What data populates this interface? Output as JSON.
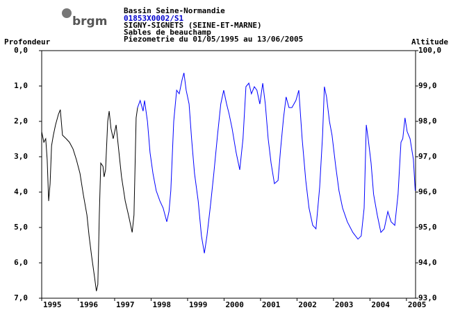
{
  "logo": "brgm",
  "chart_data": {
    "type": "line",
    "title": "Bassin Seine-Normandie",
    "code": "01853X0002/S1",
    "location": "SIGNY-SIGNETS (SEINE-ET-MARNE)",
    "aquifer": "Sables de beauchamp",
    "subtitle": "Piezometrie du 01/05/1995 au 13/06/2005",
    "y_label": "Profondeur",
    "y2_label": "Altitude",
    "xlim": [
      1995,
      2005.25
    ],
    "xticks": [
      1995,
      1996,
      1997,
      1998,
      1999,
      2000,
      2001,
      2002,
      2003,
      2004,
      2005
    ],
    "ylim": [
      7,
      0
    ],
    "yticks": [
      {
        "value": 0,
        "label": "0,0"
      },
      {
        "value": 1,
        "label": "1,0"
      },
      {
        "value": 2,
        "label": "2,0"
      },
      {
        "value": 3,
        "label": "3,0"
      },
      {
        "value": 4,
        "label": "4,0"
      },
      {
        "value": 5,
        "label": "5,0"
      },
      {
        "value": 6,
        "label": "6,0"
      },
      {
        "value": 7,
        "label": "7,0"
      }
    ],
    "y2lim": [
      93,
      100
    ],
    "y2ticks": [
      {
        "value": 100,
        "label": "100,0"
      },
      {
        "value": 99,
        "label": "99,0"
      },
      {
        "value": 98,
        "label": "98,0"
      },
      {
        "value": 97,
        "label": "97,0"
      },
      {
        "value": 96,
        "label": "96,0"
      },
      {
        "value": 95,
        "label": "95,0"
      },
      {
        "value": 94,
        "label": "94,0"
      },
      {
        "value": 93,
        "label": "93,0"
      }
    ],
    "series": [
      {
        "color": "#000000",
        "x": [
          1995.0,
          1995.06,
          1995.11,
          1995.15,
          1995.19,
          1995.23,
          1995.27,
          1995.32,
          1995.38,
          1995.46,
          1995.51,
          1995.57,
          1995.67,
          1995.76,
          1995.86,
          1995.95,
          1996.05,
          1996.14,
          1996.24,
          1996.3,
          1996.37,
          1996.45,
          1996.5,
          1996.54,
          1996.58,
          1996.62,
          1996.68,
          1996.71,
          1996.75,
          1996.81,
          1996.85,
          1996.9,
          1996.96,
          1997.04,
          1997.1,
          1997.19,
          1997.29,
          1997.38,
          1997.48,
          1997.53,
          1997.59,
          1997.63
        ],
        "values": [
          2.29,
          2.59,
          2.49,
          3.08,
          4.25,
          3.76,
          2.69,
          2.39,
          2.1,
          1.8,
          1.67,
          2.39,
          2.49,
          2.59,
          2.78,
          3.08,
          3.47,
          4.06,
          4.65,
          5.24,
          5.82,
          6.41,
          6.8,
          6.61,
          4.65,
          3.18,
          3.27,
          3.57,
          3.37,
          2.0,
          1.71,
          2.2,
          2.49,
          2.1,
          2.69,
          3.57,
          4.25,
          4.65,
          5.14,
          4.65,
          1.9,
          1.61
        ]
      },
      {
        "color": "#0000ff",
        "x": [
          1997.63,
          1997.7,
          1997.78,
          1997.82,
          1997.9,
          1997.97,
          1998.05,
          1998.14,
          1998.24,
          1998.33,
          1998.43,
          1998.49,
          1998.54,
          1998.62,
          1998.7,
          1998.77,
          1998.85,
          1998.9,
          1998.96,
          1999.04,
          1999.11,
          1999.19,
          1999.29,
          1999.38,
          1999.46,
          1999.53,
          1999.63,
          1999.72,
          1999.82,
          1999.91,
          1999.99,
          2000.07,
          2000.14,
          2000.22,
          2000.33,
          2000.43,
          2000.52,
          2000.6,
          2000.68,
          2000.75,
          2000.83,
          2000.9,
          2000.98,
          2001.06,
          2001.13,
          2001.21,
          2001.29,
          2001.38,
          2001.48,
          2001.55,
          2001.63,
          2001.7,
          2001.78,
          2001.86,
          2001.97,
          2002.05,
          2002.14,
          2002.24,
          2002.33,
          2002.43,
          2002.52,
          2002.62,
          2002.7,
          2002.75,
          2002.81,
          2002.89,
          2002.96,
          2003.06,
          2003.15,
          2003.25,
          2003.38,
          2003.53,
          2003.67,
          2003.76,
          2003.84,
          2003.9,
          2003.95,
          2004.03,
          2004.1,
          2004.2,
          2004.3,
          2004.39,
          2004.49,
          2004.58,
          2004.68,
          2004.77,
          2004.85,
          2004.9,
          2004.96,
          2005.02,
          2005.1,
          2005.19,
          2005.24
        ],
        "values": [
          1.61,
          1.41,
          1.71,
          1.41,
          2.0,
          2.88,
          3.47,
          3.96,
          4.25,
          4.45,
          4.84,
          4.55,
          3.96,
          2.0,
          1.12,
          1.22,
          0.82,
          0.63,
          1.12,
          1.51,
          2.49,
          3.47,
          4.25,
          5.24,
          5.73,
          5.24,
          4.35,
          3.47,
          2.39,
          1.51,
          1.12,
          1.51,
          1.8,
          2.2,
          2.88,
          3.37,
          2.49,
          1.02,
          0.92,
          1.22,
          1.02,
          1.12,
          1.51,
          0.92,
          1.51,
          2.49,
          3.18,
          3.76,
          3.67,
          2.78,
          1.9,
          1.31,
          1.61,
          1.61,
          1.41,
          1.12,
          2.49,
          3.67,
          4.45,
          4.94,
          5.04,
          3.86,
          2.39,
          1.02,
          1.31,
          2.0,
          2.39,
          3.27,
          3.96,
          4.45,
          4.84,
          5.14,
          5.33,
          5.24,
          4.45,
          2.1,
          2.49,
          3.18,
          4.06,
          4.65,
          5.14,
          5.04,
          4.55,
          4.84,
          4.94,
          4.06,
          2.59,
          2.49,
          1.9,
          2.29,
          2.49,
          3.08,
          3.96
        ]
      }
    ]
  }
}
